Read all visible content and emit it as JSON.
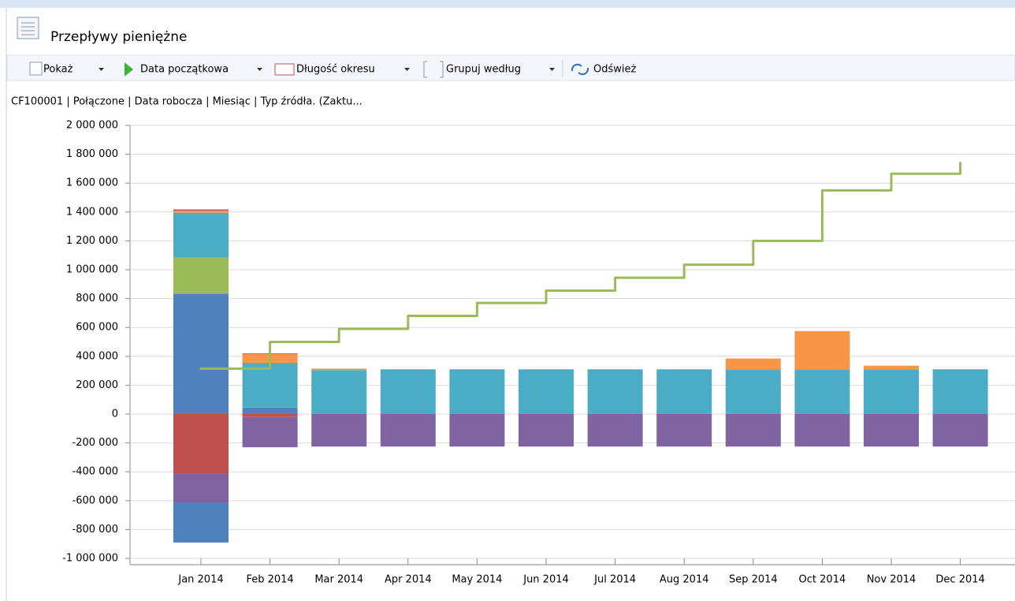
{
  "header": {
    "title": "Przepływy pieniężne"
  },
  "toolbar": {
    "items": [
      "Pokaż",
      "Data początkowa",
      "Długość okresu",
      "Grupuj według",
      "Odśwież"
    ]
  },
  "chart_data": {
    "type": "bar",
    "stacked": true,
    "title": "CF100001 | Połączone | Data robocza | Miesiąc | Typ źródła. (Zaktu...",
    "categories": [
      "Jan 2014",
      "Feb 2014",
      "Mar 2014",
      "Apr 2014",
      "May 2014",
      "Jun 2014",
      "Jul 2014",
      "Aug 2014",
      "Sep 2014",
      "Oct 2014",
      "Nov 2014",
      "Dec 2014"
    ],
    "series": [
      {
        "color": "#4f81bd",
        "values": [
          833000,
          45000,
          0,
          0,
          0,
          0,
          0,
          0,
          0,
          0,
          0,
          0
        ]
      },
      {
        "color": "#c0504d",
        "values": [
          -410000,
          -20000,
          0,
          0,
          0,
          0,
          0,
          0,
          0,
          0,
          0,
          0
        ]
      },
      {
        "color": "#8064a2",
        "values": [
          -205000,
          -210000,
          -225000,
          -225000,
          -225000,
          -225000,
          -225000,
          -225000,
          -225000,
          -225000,
          -225000,
          -225000
        ]
      },
      {
        "color": "#4f81bd",
        "values": [
          -275000,
          0,
          0,
          0,
          0,
          0,
          0,
          0,
          0,
          0,
          0,
          0
        ]
      },
      {
        "color": "#9bbb59",
        "values": [
          252000,
          0,
          0,
          0,
          0,
          0,
          0,
          0,
          0,
          0,
          0,
          0
        ]
      },
      {
        "color": "#4bacc6",
        "values": [
          310000,
          310000,
          305000,
          310000,
          310000,
          310000,
          310000,
          310000,
          310000,
          310000,
          310000,
          310000
        ]
      },
      {
        "color": "#f79646",
        "values": [
          15000,
          60000,
          10000,
          0,
          0,
          0,
          0,
          0,
          75000,
          265000,
          25000,
          0
        ]
      },
      {
        "color": "#c0504d",
        "values": [
          8000,
          5000,
          0,
          0,
          0,
          0,
          0,
          0,
          0,
          0,
          0,
          0
        ]
      },
      {
        "type": "step",
        "color": "#9bbb59",
        "values": [
          315000,
          500000,
          590000,
          680000,
          770000,
          855000,
          945000,
          1035000,
          1200000,
          1550000,
          1665000,
          1740000
        ]
      }
    ],
    "ylim": [
      -1000000,
      2000000
    ],
    "yticks": [
      {
        "value": -1000000,
        "label": "-1 000 000"
      },
      {
        "value": -800000,
        "label": "-800 000"
      },
      {
        "value": -600000,
        "label": "-600 000"
      },
      {
        "value": -400000,
        "label": "-400 000"
      },
      {
        "value": -200000,
        "label": "-200 000"
      },
      0,
      {
        "value": 200000,
        "label": "200 000"
      },
      {
        "value": 400000,
        "label": "400 000"
      },
      {
        "value": 600000,
        "label": "600 000"
      },
      {
        "value": 800000,
        "label": "800 000"
      },
      {
        "value": 1000000,
        "label": "1 000 000"
      },
      {
        "value": 1200000,
        "label": "1 200 000"
      },
      {
        "value": 1400000,
        "label": "1 400 000"
      },
      {
        "value": 1600000,
        "label": "1 600 000"
      },
      {
        "value": 1800000,
        "label": "1 800 000"
      },
      {
        "value": 2000000,
        "label": "2 000 000"
      }
    ],
    "grid": true
  }
}
